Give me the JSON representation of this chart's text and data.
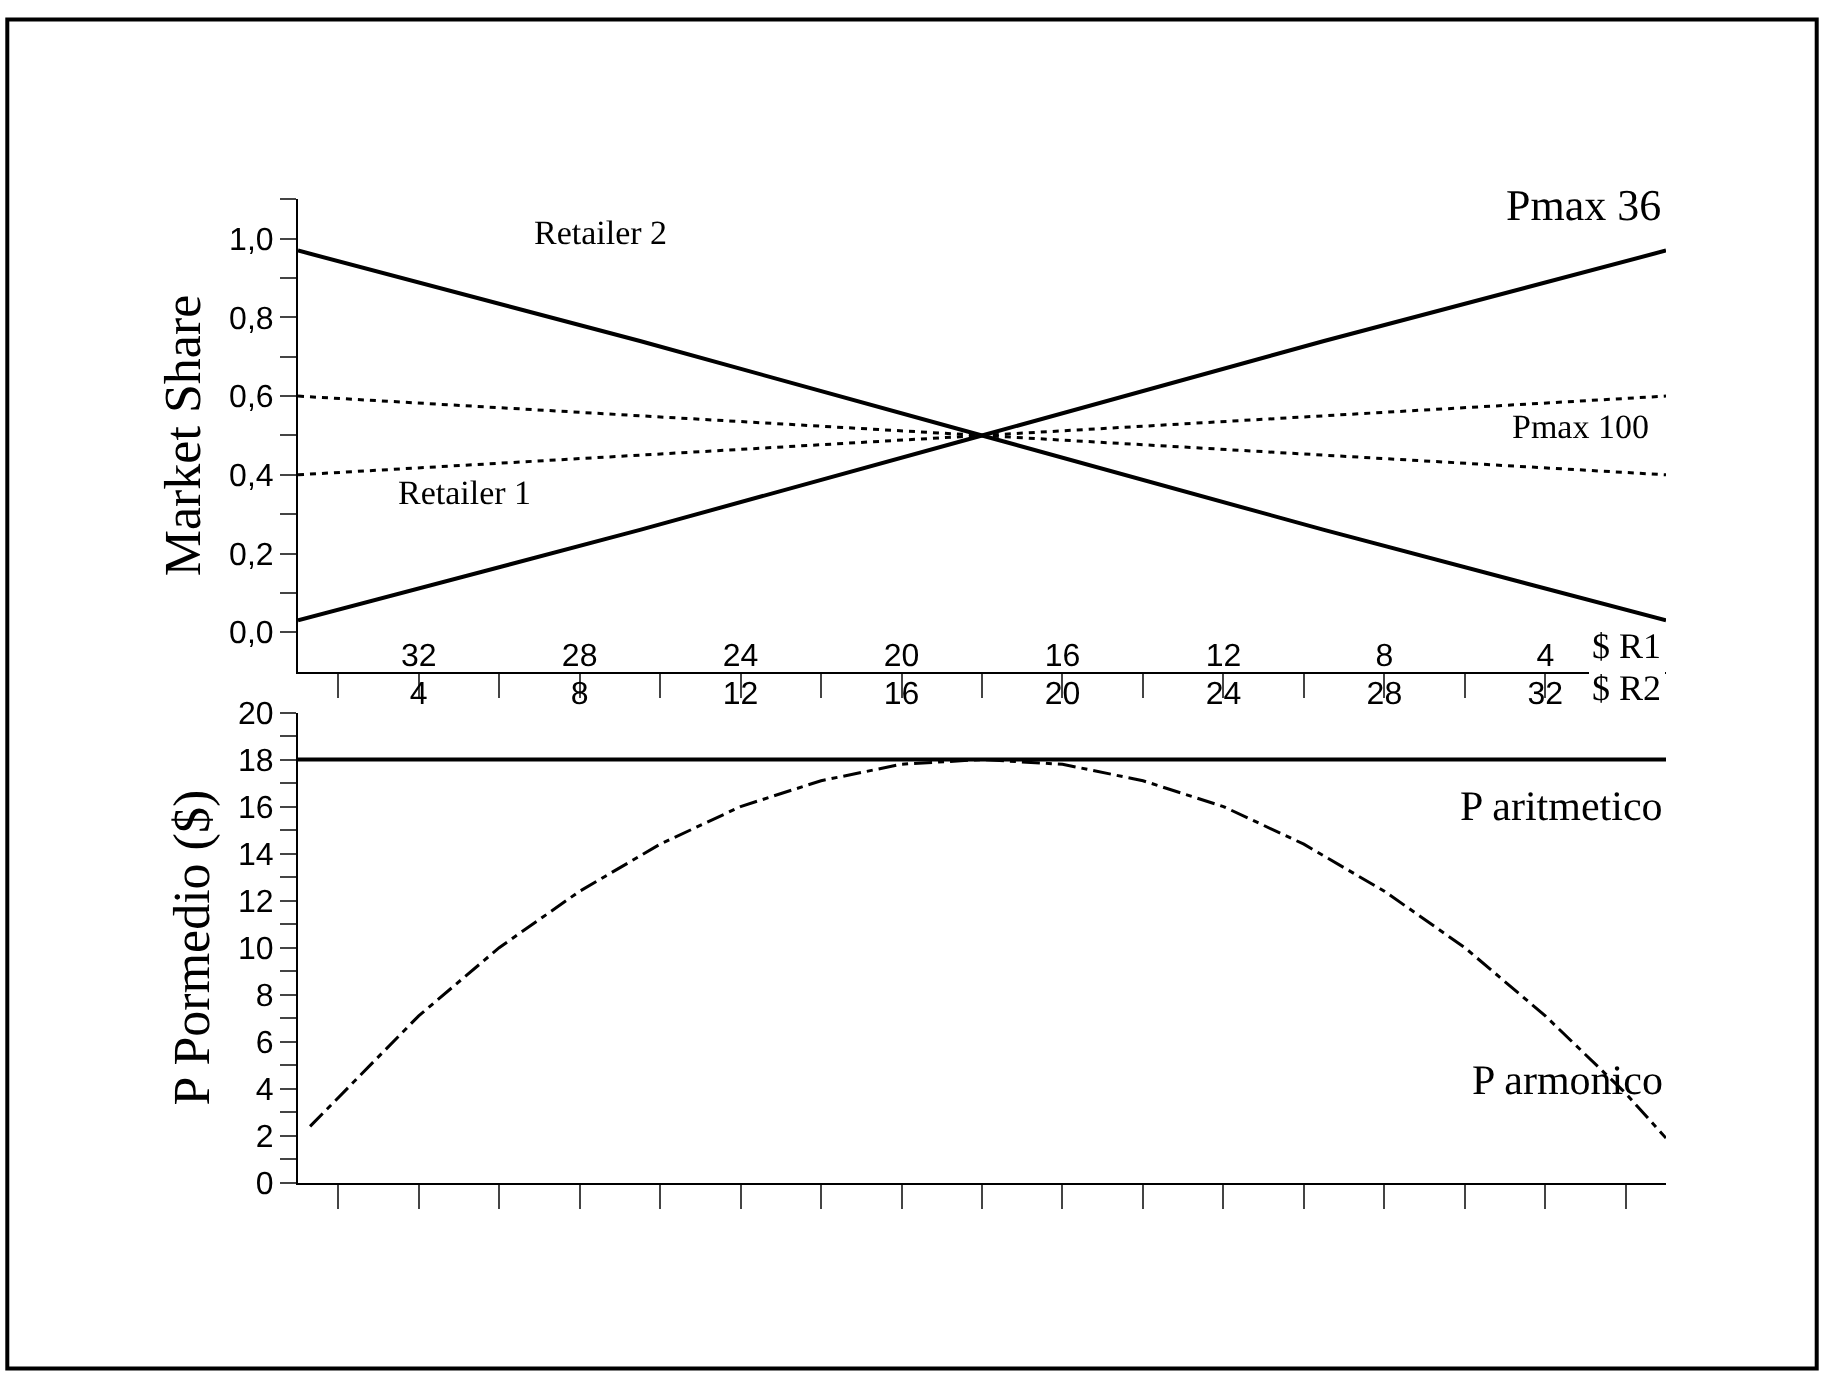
{
  "chart_data": [
    {
      "type": "line",
      "ylabel": "Market Share",
      "xlabel": "$ R1",
      "xlim": [
        35,
        1
      ],
      "ylim": [
        -0.1,
        1.1
      ],
      "xticks": [
        {
          "value": 34,
          "label": null
        },
        32,
        {
          "value": 30,
          "label": null
        },
        28,
        {
          "value": 26,
          "label": null
        },
        24,
        {
          "value": 22,
          "label": null
        },
        20,
        {
          "value": 18,
          "label": null
        },
        16,
        {
          "value": 14,
          "label": null
        },
        12,
        {
          "value": 10,
          "label": null
        },
        8,
        {
          "value": 6,
          "label": null
        },
        4,
        {
          "value": 2,
          "label": null
        }
      ],
      "yticks": [
        {
          "value": -0.1,
          "label": null
        },
        {
          "value": 0,
          "label": "0,0"
        },
        {
          "value": 0.1,
          "label": null
        },
        {
          "value": 0.2,
          "label": "0,2"
        },
        {
          "value": 0.3,
          "label": null
        },
        {
          "value": 0.4,
          "label": "0,4"
        },
        {
          "value": 0.5,
          "label": null
        },
        {
          "value": 0.6,
          "label": "0,6"
        },
        {
          "value": 0.7,
          "label": null
        },
        {
          "value": 0.8,
          "label": "0,8"
        },
        {
          "value": 0.9,
          "label": null
        },
        {
          "value": 1.0,
          "label": "1,0"
        },
        {
          "value": 1.1,
          "label": null
        }
      ],
      "marker": "none",
      "x": [
        35,
        26.5,
        18,
        9.5,
        1
      ],
      "series": [
        {
          "color": "#000000",
          "line_style": "solid",
          "values": [
            0.03,
            0.26,
            0.5,
            0.74,
            0.97
          ]
        },
        {
          "color": "#000000",
          "line_style": "solid",
          "values": [
            0.97,
            0.74,
            0.5,
            0.26,
            0.03
          ]
        },
        {
          "color": "#000000",
          "line_style": "dotted",
          "values": [
            0.4,
            0.45,
            0.5,
            0.55,
            0.6
          ]
        },
        {
          "color": "#000000",
          "line_style": "dotted",
          "values": [
            0.6,
            0.55,
            0.5,
            0.45,
            0.4
          ]
        }
      ],
      "annotations": [
        "Retailer 2",
        "Retailer 1",
        "Pmax 36",
        "Pmax 100"
      ]
    },
    {
      "type": "line",
      "ylabel": "P Pormedio ($)",
      "xlabel": "$ R2",
      "xlim": [
        1,
        35
      ],
      "ylim": [
        0,
        20
      ],
      "xticks": [
        {
          "value": 2,
          "label": null
        },
        4,
        {
          "value": 6,
          "label": null
        },
        8,
        {
          "value": 10,
          "label": null
        },
        12,
        {
          "value": 14,
          "label": null
        },
        16,
        {
          "value": 18,
          "label": null
        },
        20,
        {
          "value": 22,
          "label": null
        },
        24,
        {
          "value": 26,
          "label": null
        },
        28,
        {
          "value": 30,
          "label": null
        },
        32,
        {
          "value": 34,
          "label": null
        }
      ],
      "yticks": [
        0,
        {
          "value": 1,
          "label": null
        },
        2,
        {
          "value": 3,
          "label": null
        },
        4,
        {
          "value": 5,
          "label": null
        },
        6,
        {
          "value": 7,
          "label": null
        },
        8,
        {
          "value": 9,
          "label": null
        },
        10,
        {
          "value": 11,
          "label": null
        },
        12,
        {
          "value": 13,
          "label": null
        },
        14,
        {
          "value": 15,
          "label": null
        },
        16,
        {
          "value": 17,
          "label": null
        },
        18,
        {
          "value": 19,
          "label": null
        },
        20
      ],
      "marker": "none",
      "series": [
        {
          "color": "#000000",
          "line_style": "solid",
          "x": [
            1,
            35
          ],
          "values": [
            18,
            18
          ]
        },
        {
          "color": "#000000",
          "line_style": "dashdot",
          "x": [
            1.3,
            4,
            6,
            8,
            10,
            12,
            14,
            16,
            18,
            20,
            22,
            24,
            26,
            28,
            30,
            32,
            34,
            35
          ],
          "values": [
            2.4,
            7.1,
            10.0,
            12.4,
            14.4,
            16.0,
            17.1,
            17.8,
            18.0,
            17.8,
            17.1,
            16.0,
            14.4,
            12.4,
            10.0,
            7.1,
            3.8,
            1.9
          ]
        }
      ],
      "annotations": [
        "P aritmetico",
        "P armonico"
      ]
    }
  ]
}
